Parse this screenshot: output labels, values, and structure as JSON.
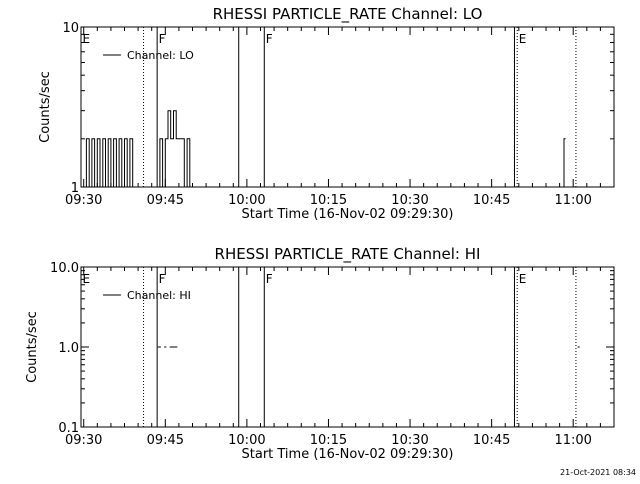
{
  "footer": {
    "timestamp": "21-Oct-2021 08:34"
  },
  "chart_data": [
    {
      "type": "line",
      "title": "RHESSI PARTICLE_RATE Channel: LO",
      "xlabel": "Start Time (16-Nov-02 09:29:30)",
      "ylabel": "Counts/sec",
      "y_scale": "log",
      "ylim": [
        1,
        10
      ],
      "y_ticks": [
        {
          "value": 1,
          "label": "1"
        },
        {
          "value": 10,
          "label": "10"
        }
      ],
      "xlim_minutes": [
        -0.5,
        97.5
      ],
      "x_ticks": [
        {
          "minutes": 0,
          "label": "09:30"
        },
        {
          "minutes": 15,
          "label": "09:45"
        },
        {
          "minutes": 30,
          "label": "10:00"
        },
        {
          "minutes": 45,
          "label": "10:15"
        },
        {
          "minutes": 60,
          "label": "10:30"
        },
        {
          "minutes": 75,
          "label": "10:45"
        },
        {
          "minutes": 90,
          "label": "11:00"
        }
      ],
      "legend": {
        "position": "top-left",
        "label": "Channel: LO"
      },
      "markers": [
        {
          "minutes": -0.5,
          "style": "dotted",
          "label": "E"
        },
        {
          "minutes": 11,
          "style": "dotted",
          "label": ""
        },
        {
          "minutes": 13.5,
          "style": "solid",
          "label": "F"
        },
        {
          "minutes": 28.5,
          "style": "solid",
          "label": ""
        },
        {
          "minutes": 33.2,
          "style": "solid",
          "label": "F"
        },
        {
          "minutes": 79.2,
          "style": "solid",
          "label": ""
        },
        {
          "minutes": 79.7,
          "style": "dotted",
          "label": "E"
        },
        {
          "minutes": 90.5,
          "style": "dotted",
          "label": ""
        }
      ],
      "series": [
        {
          "name": "Channel: LO",
          "x_minutes": [
            0,
            0.5,
            0.5,
            1,
            1,
            1.5,
            1.5,
            2,
            2,
            2.5,
            2.5,
            3,
            3,
            3.5,
            3.5,
            4,
            4,
            4.5,
            4.5,
            5,
            5,
            5.5,
            5.5,
            6,
            6,
            6.5,
            6.5,
            7,
            7,
            7.5,
            7.5,
            8,
            8,
            8.5,
            8.5,
            9,
            9,
            9.5,
            13.5,
            14,
            14,
            14.5,
            14.5,
            15,
            15,
            15.5,
            15.5,
            16,
            16,
            16.5,
            16.5,
            17,
            17,
            17.5,
            17.5,
            18,
            18,
            18.5,
            18.5,
            19,
            19,
            19.5,
            19.5,
            20,
            20,
            20.5,
            20.5,
            21,
            88,
            88,
            88.3,
            88.3,
            88.6
          ],
          "values": [
            1,
            1,
            2,
            2,
            1,
            1,
            2,
            2,
            1,
            1,
            2,
            2,
            1,
            1,
            2,
            2,
            1,
            1,
            2,
            2,
            1,
            1,
            2,
            2,
            1,
            1,
            2,
            2,
            1,
            1,
            2,
            2,
            1,
            1,
            2,
            2,
            1,
            1,
            1,
            1,
            2,
            2,
            1,
            1,
            2,
            2,
            3,
            3,
            2,
            2,
            3,
            3,
            2,
            2,
            2,
            2,
            2,
            2,
            1,
            1,
            2,
            2,
            1,
            1,
            1,
            1,
            1,
            1,
            1,
            1,
            1,
            2,
            2
          ]
        }
      ]
    },
    {
      "type": "line",
      "title": "RHESSI PARTICLE_RATE Channel: HI",
      "xlabel": "Start Time (16-Nov-02 09:29:30)",
      "ylabel": "Counts/sec",
      "y_scale": "log",
      "ylim": [
        0.1,
        10
      ],
      "y_ticks": [
        {
          "value": 0.1,
          "label": "0.1"
        },
        {
          "value": 1.0,
          "label": "1.0"
        },
        {
          "value": 10.0,
          "label": "10.0"
        }
      ],
      "xlim_minutes": [
        -0.5,
        97.5
      ],
      "x_ticks": [
        {
          "minutes": 0,
          "label": "09:30"
        },
        {
          "minutes": 15,
          "label": "09:45"
        },
        {
          "minutes": 30,
          "label": "10:00"
        },
        {
          "minutes": 45,
          "label": "10:15"
        },
        {
          "minutes": 60,
          "label": "10:30"
        },
        {
          "minutes": 75,
          "label": "10:45"
        },
        {
          "minutes": 90,
          "label": "11:00"
        }
      ],
      "legend": {
        "position": "top-left",
        "label": "Channel: HI"
      },
      "markers": [
        {
          "minutes": -0.5,
          "style": "dotted",
          "label": "E"
        },
        {
          "minutes": 11,
          "style": "dotted",
          "label": ""
        },
        {
          "minutes": 13.5,
          "style": "solid",
          "label": "F"
        },
        {
          "minutes": 28.5,
          "style": "solid",
          "label": ""
        },
        {
          "minutes": 33.2,
          "style": "solid",
          "label": "F"
        },
        {
          "minutes": 79.2,
          "style": "solid",
          "label": ""
        },
        {
          "minutes": 79.7,
          "style": "dotted",
          "label": "E"
        },
        {
          "minutes": 90.5,
          "style": "dotted",
          "label": ""
        }
      ],
      "series": [
        {
          "name": "Channel: HI",
          "segments": [
            {
              "x_minutes": [
                13.6,
                14.2
              ],
              "values": [
                1,
                1
              ]
            },
            {
              "x_minutes": [
                14.8,
                15.2
              ],
              "values": [
                1,
                1
              ]
            },
            {
              "x_minutes": [
                15.8,
                17.2
              ],
              "values": [
                1,
                1
              ]
            },
            {
              "x_minutes": [
                90.8,
                91.2
              ],
              "values": [
                1,
                1
              ]
            }
          ]
        }
      ]
    }
  ]
}
